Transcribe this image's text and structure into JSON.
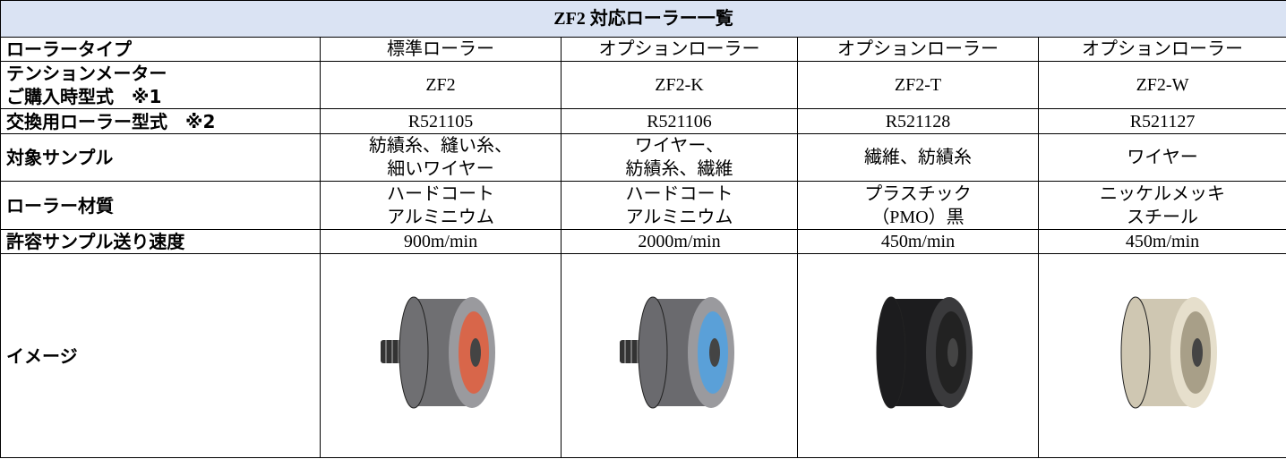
{
  "table": {
    "title": "ZF2 対応ローラー一覧",
    "rows": [
      [
        "ローラータイプ",
        "標準ローラー",
        "オプションローラー",
        "オプションローラー",
        "オプションローラー"
      ],
      [
        [
          "テンションメーター",
          "ご購入時型式　※1"
        ],
        "ZF2",
        "ZF2-K",
        "ZF2-T",
        "ZF2-W"
      ],
      [
        "交換用ローラー型式　※2",
        "R521105",
        "R521106",
        "R521128",
        "R521127"
      ],
      [
        "対象サンプル",
        [
          "紡績糸、縫い糸、",
          "細いワイヤー"
        ],
        [
          "ワイヤー、",
          "紡績糸、繊維"
        ],
        "繊維、紡績糸",
        "ワイヤー"
      ],
      [
        "ローラー材質",
        [
          "ハードコート",
          "アルミニウム"
        ],
        [
          "ハードコート",
          "アルミニウム"
        ],
        [
          "プラスチック",
          "（PMO）黒"
        ],
        [
          "ニッケルメッキ",
          "スチール"
        ]
      ],
      [
        "許容サンプル送り速度",
        "900m/min",
        "2000m/min",
        "450m/min",
        "450m/min"
      ]
    ],
    "image_label": "イメージ"
  }
}
